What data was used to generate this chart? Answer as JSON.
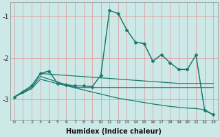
{
  "xlabel": "Humidex (Indice chaleur)",
  "background_color": "#cce9e8",
  "grid_color": "#e88080",
  "line_color": "#1a7a6e",
  "xlim": [
    -0.5,
    23.5
  ],
  "ylim": [
    -3.5,
    -0.65
  ],
  "yticks": [
    -3,
    -2,
    -1
  ],
  "xticks": [
    0,
    1,
    2,
    3,
    4,
    5,
    6,
    7,
    8,
    9,
    10,
    11,
    12,
    13,
    14,
    15,
    16,
    17,
    18,
    19,
    20,
    21,
    22,
    23
  ],
  "series": [
    {
      "x": [
        0,
        1,
        2,
        3,
        4,
        5,
        6,
        7,
        8,
        9,
        10,
        11,
        12,
        13,
        14,
        15,
        16,
        17,
        18,
        19,
        20,
        21,
        22,
        23
      ],
      "y": [
        -2.95,
        -2.82,
        -2.68,
        -2.38,
        -2.32,
        -2.62,
        -2.65,
        -2.68,
        -2.68,
        -2.7,
        -2.42,
        -0.85,
        -0.92,
        -1.32,
        -1.62,
        -1.65,
        -2.08,
        -1.92,
        -2.12,
        -2.28,
        -2.28,
        -1.93,
        -3.28,
        -3.38
      ],
      "marker": "D",
      "markersize": 2.5,
      "linewidth": 1.1
    },
    {
      "x": [
        0,
        2,
        3,
        19,
        23
      ],
      "y": [
        -2.95,
        -2.68,
        -2.38,
        -2.62,
        -2.62
      ],
      "marker": null,
      "linewidth": 0.9
    },
    {
      "x": [
        0,
        2,
        3,
        7,
        8,
        19,
        20,
        23
      ],
      "y": [
        -2.95,
        -2.72,
        -2.45,
        -2.72,
        -2.72,
        -2.72,
        -2.72,
        -2.72
      ],
      "marker": null,
      "linewidth": 0.9
    },
    {
      "x": [
        0,
        2,
        3,
        8,
        10,
        12,
        14,
        16,
        18,
        20,
        21,
        22,
        23
      ],
      "y": [
        -2.95,
        -2.75,
        -2.52,
        -2.78,
        -2.88,
        -2.98,
        -3.05,
        -3.12,
        -3.18,
        -3.22,
        -3.23,
        -3.26,
        -3.38
      ],
      "marker": null,
      "linewidth": 0.9
    }
  ]
}
